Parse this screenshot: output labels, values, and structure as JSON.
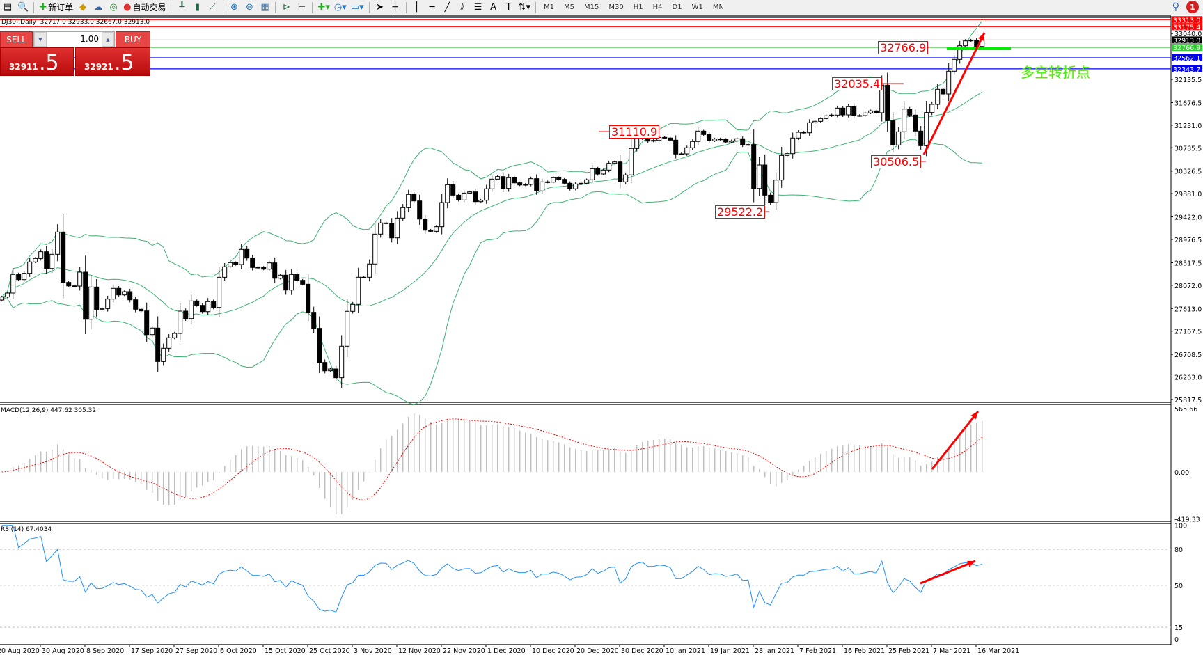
{
  "toolbar": {
    "new_order_label": "新订单",
    "auto_trading_label": "自动交易",
    "timeframes": [
      "M1",
      "M5",
      "M15",
      "M30",
      "H1",
      "H4",
      "D1",
      "W1",
      "MN"
    ],
    "notification_count": "1"
  },
  "chart": {
    "title": "DJ30-,Daily  32717.0 32933.0 32667.0 32913.0",
    "overlay_text": "多空转折点"
  },
  "one_click": {
    "sell_label": "SELL",
    "buy_label": "BUY",
    "lot": "1.00",
    "sell_price_main": "32911",
    "sell_price_frac": ".5",
    "buy_price_main": "32921",
    "buy_price_frac": ".5"
  },
  "colors": {
    "bollinger": "#3cb371",
    "macd_hist": "#c0c0c0",
    "macd_signal": "#ff0000",
    "rsi": "#1e90ff",
    "annotation": "#ff0000",
    "arrow": "#ff0000"
  },
  "annotations": [
    {
      "label": "31110.9",
      "value": 31110.9
    },
    {
      "label": "32035.4",
      "value": 32035.4
    },
    {
      "label": "29522.2",
      "value": 29522.2
    },
    {
      "label": "30506.5",
      "value": 30506.5
    },
    {
      "label": "32766.9",
      "value": 32766.9
    }
  ],
  "price_axis": {
    "ticks": [
      "33040.0",
      "32135.5",
      "31676.5",
      "31231.0",
      "30785.5",
      "30326.5",
      "29881.0",
      "29422.0",
      "28976.5",
      "28517.5",
      "28072.0",
      "27613.0",
      "27167.5",
      "26708.5",
      "26263.0",
      "25817.5"
    ],
    "levels": [
      {
        "label": "33313.0",
        "value": 33313.0,
        "color": "#ff0000",
        "line": "#ff0000"
      },
      {
        "label": "33175.4",
        "value": 33175.4,
        "color": "#ff0000",
        "line": "#ff0000"
      },
      {
        "label": "32913.0",
        "value": 32913.0,
        "color": "#000000",
        "line": "#c0c0c0"
      },
      {
        "label": "32766.9",
        "value": 32766.9,
        "color": "#32cd32",
        "line": "#32cd32"
      },
      {
        "label": "32562.1",
        "value": 32562.1,
        "color": "#0000ff",
        "line": "#0000ff"
      },
      {
        "label": "32343.7",
        "value": 32343.7,
        "color": "#0000ff",
        "line": "#0000ff"
      }
    ]
  },
  "macd": {
    "label": "MACD(12,26,9) 447.62 305.32",
    "axis": [
      "565.66",
      "0.00",
      "-419.33"
    ]
  },
  "rsi": {
    "label": "RSI(14) 67.4034",
    "axis": [
      "100",
      "80",
      "50",
      "15",
      "0"
    ]
  },
  "chart_data": {
    "type": "candlestick",
    "symbol": "DJ30-",
    "timeframe": "Daily",
    "last_bar": {
      "open": 32717.0,
      "high": 32933.0,
      "low": 32667.0,
      "close": 32913.0
    },
    "ylim": [
      25817.5,
      33313.0
    ],
    "x_tick_labels": [
      "20 Aug 2020",
      "30 Aug 2020",
      "8 Sep 2020",
      "17 Sep 2020",
      "27 Sep 2020",
      "6 Oct 2020",
      "15 Oct 2020",
      "25 Oct 2020",
      "3 Nov 2020",
      "12 Nov 2020",
      "22 Nov 2020",
      "1 Dec 2020",
      "10 Dec 2020",
      "20 Dec 2020",
      "30 Dec 2020",
      "10 Jan 2021",
      "19 Jan 2021",
      "28 Jan 2021",
      "7 Feb 2021",
      "16 Feb 2021",
      "25 Feb 2021",
      "7 Mar 2021",
      "16 Mar 2021"
    ],
    "closes": [
      27841,
      27919,
      28286,
      28184,
      28308,
      28533,
      28601,
      28734,
      28404,
      28684,
      29123,
      28129,
      28060,
      28056,
      28331,
      27401,
      28038,
      27594,
      27612,
      27800,
      28011,
      27882,
      27946,
      27786,
      27599,
      27566,
      27099,
      27228,
      26568,
      26830,
      27036,
      27122,
      27562,
      27415,
      27763,
      27676,
      27552,
      27750,
      27635,
      28230,
      28437,
      28519,
      28482,
      28780,
      28610,
      28423,
      28427,
      28390,
      28514,
      28211,
      28272,
      27978,
      28285,
      28170,
      28093,
      27539,
      27223,
      26550,
      26385,
      26422,
      26248,
      26871,
      27558,
      27695,
      28231,
      28231,
      28492,
      29082,
      29302,
      29297,
      29008,
      29398,
      29604,
      29865,
      29736,
      29379,
      29159,
      29137,
      29228,
      29704,
      30057,
      29851,
      29755,
      29892,
      29915,
      29722,
      29750,
      29975,
      30167,
      30217,
      29984,
      30195,
      30093,
      30052,
      30062,
      30176,
      29934,
      30112,
      30107,
      30195,
      30162,
      30085,
      29975,
      30071,
      30085,
      30154,
      30373,
      30268,
      30346,
      30478,
      30505,
      30112,
      30250,
      30772,
      30964,
      31033,
      30917,
      30931,
      30991,
      30978,
      30936,
      30662,
      30666,
      30785,
      30909,
      31115,
      31046,
      30923,
      30958,
      30950,
      30900,
      30922,
      30964,
      30840,
      30849,
      29983,
      30446,
      29851,
      29704,
      30148,
      30634,
      30670,
      30978,
      31092,
      31082,
      31280,
      31307,
      31362,
      31417,
      31431,
      31568,
      31435,
      31596,
      31421,
      31421,
      31472,
      31513,
      31476,
      32021,
      31321,
      30840,
      31101,
      31549,
      31431,
      31115,
      30826,
      31481,
      31641,
      31939,
      31847,
      32296,
      32530,
      32799,
      32895,
      32909,
      32785,
      32913
    ],
    "indicators": {
      "bollinger": {
        "period": 20,
        "deviation": 2
      },
      "macd": {
        "fast": 12,
        "slow": 26,
        "signal": 9,
        "main": 447.62,
        "signal_value": 305.32,
        "ylim": [
          -419.33,
          565.66
        ]
      },
      "rsi": {
        "period": 14,
        "value": 67.4034,
        "levels": [
          80,
          50,
          15
        ],
        "ylim": [
          0,
          100
        ]
      }
    }
  }
}
